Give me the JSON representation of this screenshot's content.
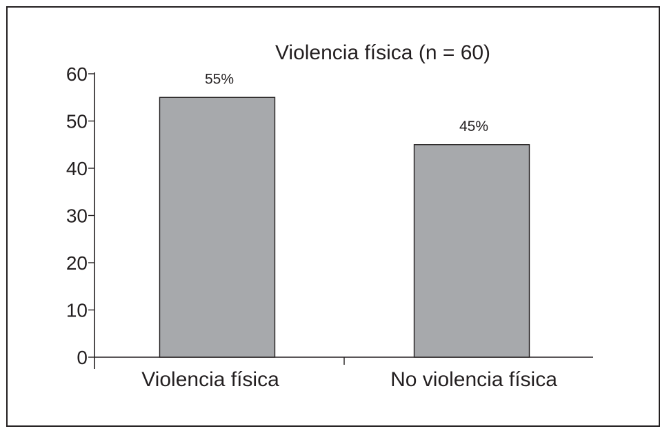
{
  "chart_data": {
    "type": "bar",
    "title": "Violencia física (n = 60)",
    "categories": [
      "Violencia física",
      "No violencia física"
    ],
    "values": [
      55,
      45
    ],
    "data_labels": [
      "55%",
      "45%"
    ],
    "xlabel": "",
    "ylabel": "",
    "ylim": [
      0,
      60
    ],
    "yticks": [
      "0",
      "10",
      "20",
      "30",
      "40",
      "50",
      "60"
    ],
    "grid": false,
    "legend": "none",
    "colors": {
      "bar_fill": "#a7a9ac",
      "bar_stroke": "#231f20",
      "axis": "#231f20",
      "text": "#231f20"
    }
  }
}
